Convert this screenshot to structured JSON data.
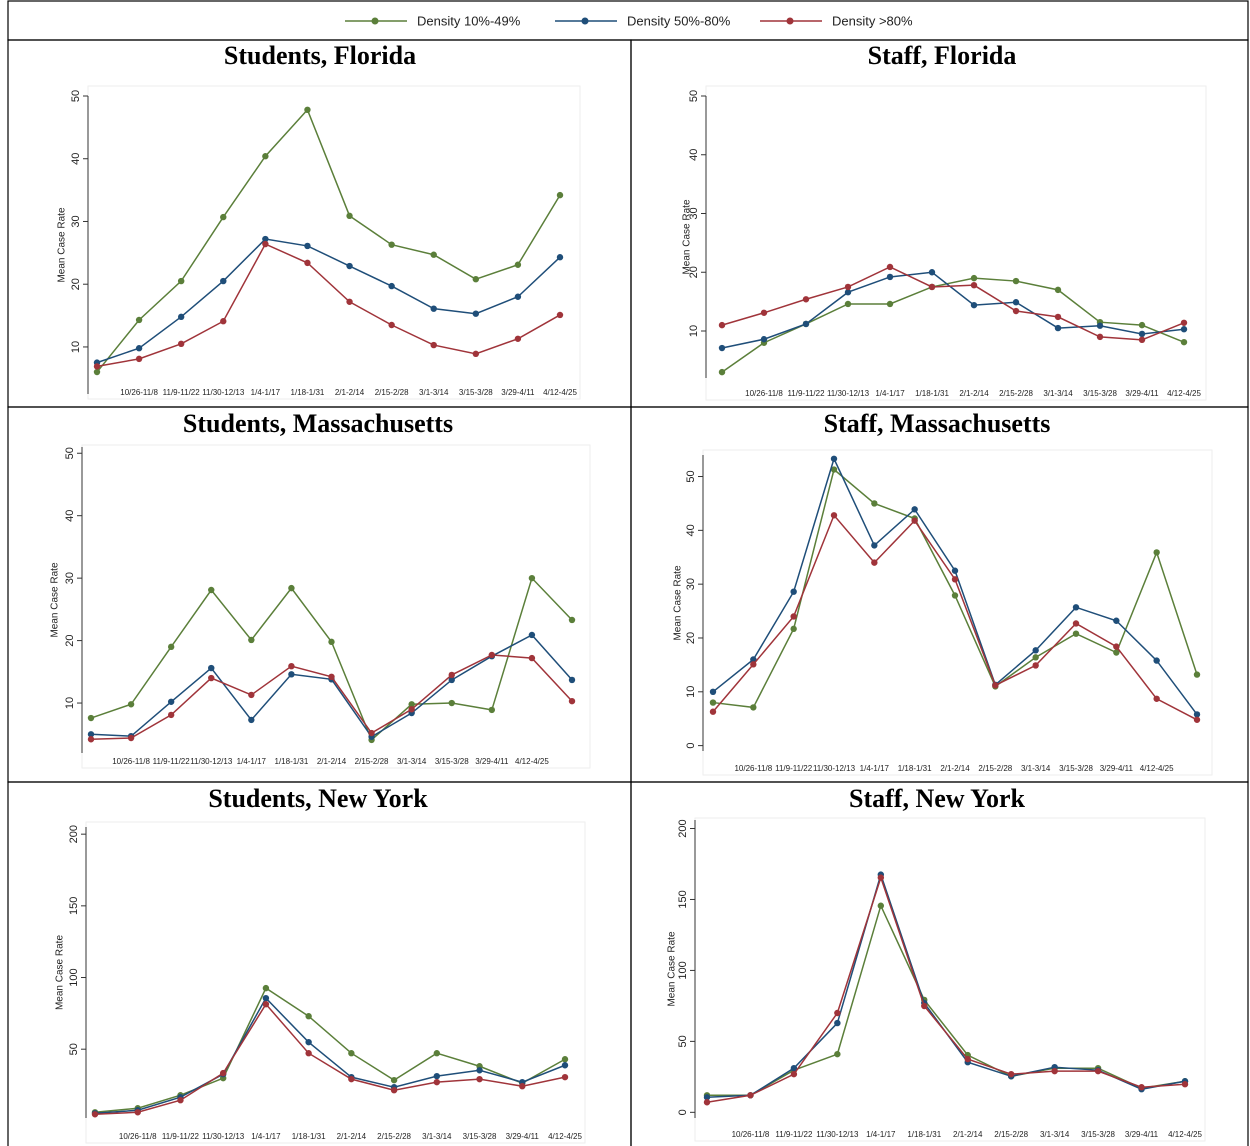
{
  "chart_data": [
    {
      "type": "line",
      "title": "Students, Florida",
      "ylabel": "Mean Case Rate",
      "categories": [
        null,
        "10/26-11/8",
        "11/9-11/22",
        "11/30-12/13",
        "1/4-1/17",
        "1/18-1/31",
        "2/1-2/14",
        "2/15-2/28",
        "3/1-3/14",
        "3/15-3/28",
        "3/29-4/11",
        "4/12-4/25"
      ],
      "ylim": [
        2.5,
        50
      ],
      "yticks": [
        10,
        20,
        30,
        40,
        50
      ],
      "series": [
        {
          "name": "Density 10%-49%",
          "color": "#5b7f3a",
          "values": [
            6.0,
            14.3,
            20.5,
            30.7,
            40.4,
            47.8,
            30.9,
            26.3,
            24.7,
            20.8,
            23.1,
            34.2
          ]
        },
        {
          "name": "Density 50%-80%",
          "color": "#1f4e79",
          "values": [
            7.5,
            9.8,
            14.8,
            20.5,
            27.2,
            26.1,
            22.9,
            19.7,
            16.1,
            15.3,
            18.0,
            24.3
          ]
        },
        {
          "name": "Density >80%",
          "color": "#a0343a",
          "values": [
            6.9,
            8.1,
            10.5,
            14.1,
            26.4,
            23.4,
            17.2,
            13.5,
            10.3,
            8.9,
            11.3,
            15.1
          ]
        }
      ]
    },
    {
      "type": "line",
      "title": "Staff, Florida",
      "ylabel": "Mean Case Rate",
      "categories": [
        null,
        "10/26-11/8",
        "11/9-11/22",
        "11/30-12/13",
        "1/4-1/17",
        "1/18-1/31",
        "2/1-2/14",
        "2/15-2/28",
        "3/1-3/14",
        "3/15-3/28",
        "3/29-4/11",
        "4/12-4/25"
      ],
      "ylim": [
        2,
        50
      ],
      "yticks": [
        10,
        20,
        30,
        40,
        50
      ],
      "series": [
        {
          "name": "Density 10%-49%",
          "color": "#5b7f3a",
          "values": [
            3.0,
            8.0,
            11.2,
            14.6,
            14.6,
            17.5,
            19.0,
            18.5,
            17.0,
            11.5,
            11.0,
            8.1
          ]
        },
        {
          "name": "Density 50%-80%",
          "color": "#1f4e79",
          "values": [
            7.1,
            8.6,
            11.2,
            16.6,
            19.2,
            20.0,
            14.4,
            14.9,
            10.5,
            10.9,
            9.5,
            10.3
          ]
        },
        {
          "name": "Density >80%",
          "color": "#a0343a",
          "values": [
            11.0,
            13.1,
            15.4,
            17.5,
            20.9,
            17.5,
            17.8,
            13.4,
            12.4,
            9.0,
            8.5,
            11.4
          ]
        }
      ]
    },
    {
      "type": "line",
      "title": "Students, Massachusetts",
      "ylabel": "Mean Case Rate",
      "categories": [
        null,
        "10/26-11/8",
        "11/9-11/22",
        "11/30-12/13",
        "1/4-1/17",
        "1/18-1/31",
        "2/1-2/14",
        "2/15-2/28",
        "3/1-3/14",
        "3/15-3/28",
        "3/29-4/11",
        "4/12-4/25",
        null
      ],
      "ylim": [
        2,
        51
      ],
      "yticks": [
        10,
        20,
        30,
        40,
        50
      ],
      "series": [
        {
          "name": "Density 10%-49%",
          "color": "#5b7f3a",
          "values": [
            7.6,
            9.8,
            19.0,
            28.1,
            20.1,
            28.4,
            19.8,
            4.1,
            9.8,
            10.0,
            8.9,
            30.0,
            23.3
          ]
        },
        {
          "name": "Density 50%-80%",
          "color": "#1f4e79",
          "values": [
            5.0,
            4.7,
            10.2,
            15.6,
            7.3,
            14.6,
            13.8,
            4.6,
            8.4,
            13.7,
            17.5,
            20.9,
            13.7
          ]
        },
        {
          "name": "Density >80%",
          "color": "#a0343a",
          "values": [
            4.2,
            4.4,
            8.1,
            14.0,
            11.3,
            15.9,
            14.2,
            5.2,
            9.0,
            14.5,
            17.7,
            17.2,
            10.3
          ]
        }
      ]
    },
    {
      "type": "line",
      "title": "Staff, Massachusetts",
      "ylabel": "Mean Case Rate",
      "categories": [
        null,
        "10/26-11/8",
        "11/9-11/22",
        "11/30-12/13",
        "1/4-1/17",
        "1/18-1/31",
        "2/1-2/14",
        "2/15-2/28",
        "3/1-3/14",
        "3/15-3/28",
        "3/29-4/11",
        "4/12-4/25",
        null
      ],
      "ylim": [
        -1,
        54
      ],
      "yticks": [
        0,
        10,
        20,
        30,
        40,
        50
      ],
      "series": [
        {
          "name": "Density 10%-49%",
          "color": "#5b7f3a",
          "values": [
            8.0,
            7.1,
            21.7,
            51.3,
            45.0,
            42.2,
            27.9,
            11.0,
            16.4,
            20.8,
            17.3,
            35.9,
            13.2
          ]
        },
        {
          "name": "Density 50%-80%",
          "color": "#1f4e79",
          "values": [
            10.0,
            16.0,
            28.6,
            53.3,
            37.2,
            43.9,
            32.5,
            11.3,
            17.7,
            25.7,
            23.2,
            15.8,
            5.8
          ]
        },
        {
          "name": "Density >80%",
          "color": "#a0343a",
          "values": [
            6.3,
            15.1,
            24.0,
            42.8,
            34.0,
            41.8,
            30.9,
            11.2,
            14.9,
            22.7,
            18.4,
            8.7,
            4.8
          ]
        }
      ]
    },
    {
      "type": "line",
      "title": "Students, New York",
      "ylabel": "Mean Case Rate",
      "categories": [
        null,
        "10/26-11/8",
        "11/9-11/22",
        "11/30-12/13",
        "1/4-1/17",
        "1/18-1/31",
        "2/1-2/14",
        "2/15-2/28",
        "3/1-3/14",
        "3/15-3/28",
        "3/29-4/11",
        "4/12-4/25"
      ],
      "ylim": [
        2,
        205
      ],
      "yticks": [
        50,
        100,
        150,
        200
      ],
      "series": [
        {
          "name": "Density 10%-49%",
          "color": "#5b7f3a",
          "values": [
            6.0,
            8.8,
            17.9,
            29.8,
            92.6,
            73.0,
            47.2,
            28.4,
            47.2,
            38.1,
            26.3,
            43.0
          ]
        },
        {
          "name": "Density 50%-80%",
          "color": "#1f4e79",
          "values": [
            5.3,
            7.4,
            16.5,
            32.6,
            85.6,
            54.9,
            30.5,
            23.5,
            31.2,
            35.3,
            27.0,
            38.8
          ]
        },
        {
          "name": "Density >80%",
          "color": "#a0343a",
          "values": [
            4.6,
            6.0,
            14.4,
            33.3,
            81.4,
            47.2,
            29.1,
            21.4,
            27.0,
            29.1,
            24.2,
            30.5
          ]
        }
      ]
    },
    {
      "type": "line",
      "title": "Staff, New York",
      "ylabel": "Mean Case Rate",
      "categories": [
        null,
        "10/26-11/8",
        "11/9-11/22",
        "11/30-12/13",
        "1/4-1/17",
        "1/18-1/31",
        "2/1-2/14",
        "2/15-2/28",
        "3/1-3/14",
        "3/15-3/28",
        "3/29-4/11",
        "4/12-4/25"
      ],
      "ylim": [
        -4,
        206
      ],
      "yticks": [
        0,
        50,
        100,
        150,
        200
      ],
      "series": [
        {
          "name": "Density 10%-49%",
          "color": "#5b7f3a",
          "values": [
            12.0,
            12.0,
            29.7,
            41.0,
            145.6,
            79.2,
            40.3,
            25.4,
            31.1,
            31.1,
            17.0,
            21.9
          ]
        },
        {
          "name": "Density 50%-80%",
          "color": "#1f4e79",
          "values": [
            10.6,
            12.0,
            31.1,
            62.9,
            167.5,
            77.0,
            35.3,
            25.4,
            31.8,
            29.7,
            16.3,
            21.9
          ]
        },
        {
          "name": "Density >80%",
          "color": "#a0343a",
          "values": [
            7.1,
            12.0,
            26.9,
            70.0,
            165.4,
            74.9,
            37.5,
            26.9,
            29.0,
            29.0,
            17.7,
            19.8
          ]
        }
      ]
    }
  ]
}
